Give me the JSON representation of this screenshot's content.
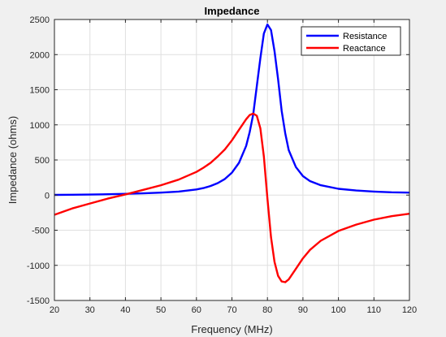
{
  "chart_data": {
    "type": "line",
    "title": "Impedance",
    "xlabel": "Frequency (MHz)",
    "ylabel": "Impedance (ohms)",
    "xlim": [
      20,
      120
    ],
    "ylim": [
      -1500,
      2500
    ],
    "xticks": [
      "20",
      "30",
      "40",
      "50",
      "60",
      "70",
      "80",
      "90",
      "100",
      "110",
      "120"
    ],
    "yticks": [
      "2500",
      "2000",
      "1500",
      "1000",
      "500",
      "0",
      "-500",
      "-1000",
      "-1500"
    ],
    "grid": true,
    "legend_position": "top-right",
    "series": [
      {
        "name": "Resistance",
        "color": "#0000ff",
        "x": [
          20,
          25,
          30,
          35,
          40,
          45,
          50,
          55,
          60,
          62,
          64,
          66,
          68,
          70,
          72,
          74,
          75,
          76,
          77,
          78,
          79,
          80,
          81,
          82,
          83,
          84,
          85,
          86,
          88,
          90,
          92,
          95,
          100,
          105,
          110,
          115,
          120
        ],
        "y": [
          3,
          5,
          8,
          12,
          18,
          25,
          35,
          50,
          80,
          100,
          130,
          170,
          230,
          320,
          460,
          700,
          900,
          1150,
          1550,
          1950,
          2300,
          2430,
          2350,
          2050,
          1650,
          1200,
          880,
          640,
          400,
          270,
          200,
          140,
          90,
          65,
          50,
          40,
          35
        ]
      },
      {
        "name": "Reactance",
        "color": "#ff0000",
        "x": [
          20,
          25,
          30,
          35,
          40,
          45,
          50,
          55,
          60,
          62,
          64,
          66,
          68,
          70,
          72,
          74,
          75,
          76,
          77,
          78,
          79,
          80,
          81,
          82,
          83,
          84,
          85,
          86,
          88,
          90,
          92,
          95,
          100,
          105,
          110,
          115,
          120
        ],
        "y": [
          -280,
          -190,
          -120,
          -50,
          10,
          75,
          140,
          220,
          330,
          390,
          460,
          550,
          650,
          780,
          930,
          1080,
          1140,
          1160,
          1130,
          950,
          550,
          -50,
          -600,
          -950,
          -1150,
          -1230,
          -1240,
          -1200,
          -1050,
          -900,
          -780,
          -650,
          -510,
          -420,
          -350,
          -300,
          -265
        ]
      }
    ]
  }
}
